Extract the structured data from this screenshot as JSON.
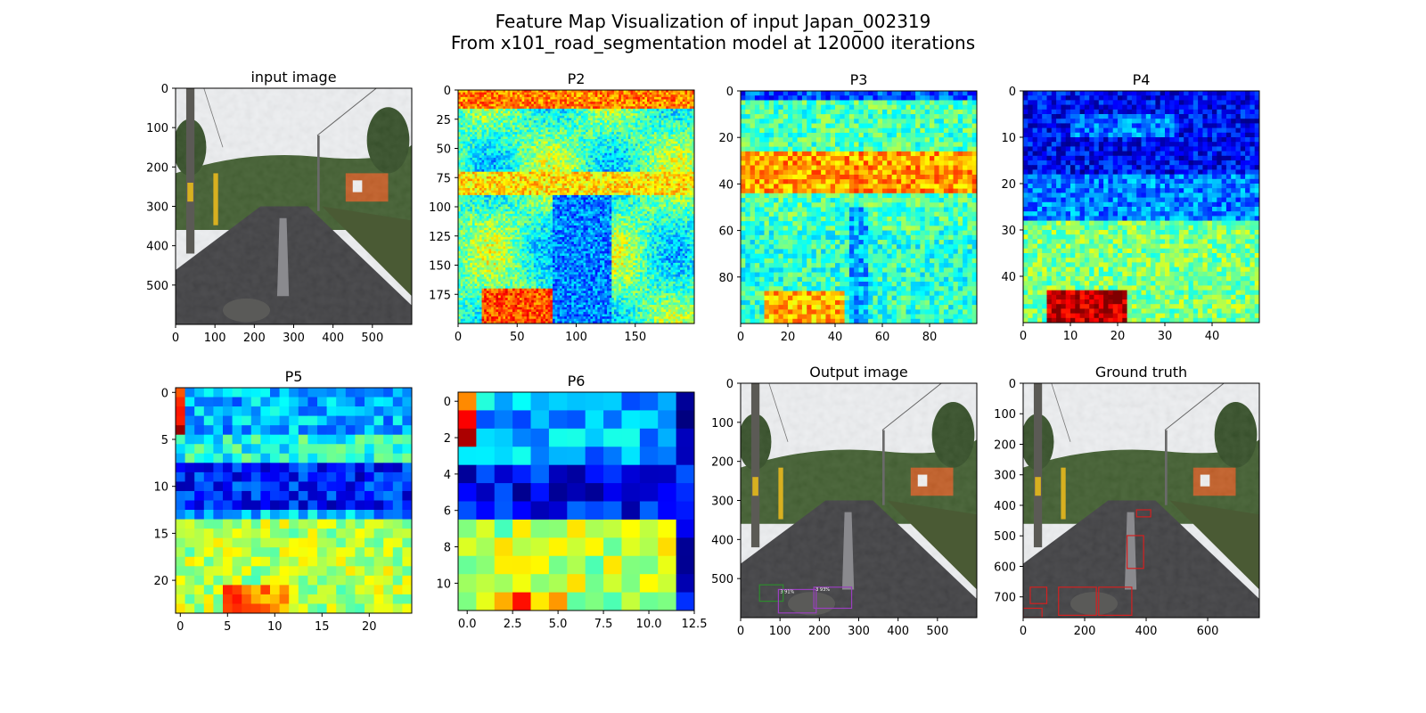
{
  "figure": {
    "title_line1": "Feature Map Visualization of input Japan_002319",
    "title_line2": "From x101_road_segmentation model at 120000 iterations"
  },
  "chart_data": [
    {
      "type": "heatmap",
      "title": "input image",
      "content": "photo",
      "xlim": [
        0,
        600
      ],
      "ylim": [
        600,
        0
      ],
      "xticks": [
        "0",
        "100",
        "200",
        "300",
        "400",
        "500"
      ],
      "xtick_vals": [
        0,
        100,
        200,
        300,
        400,
        500
      ],
      "yticks": [
        "0",
        "100",
        "200",
        "300",
        "400",
        "500"
      ],
      "ytick_vals": [
        0,
        100,
        200,
        300,
        400,
        500
      ]
    },
    {
      "type": "heatmap",
      "title": "P2",
      "content": "heat",
      "xlim": [
        0,
        200
      ],
      "ylim": [
        200,
        0
      ],
      "xticks": [
        "0",
        "50",
        "100",
        "150"
      ],
      "xtick_vals": [
        0,
        50,
        100,
        150
      ],
      "yticks": [
        "0",
        "25",
        "50",
        "75",
        "100",
        "125",
        "150",
        "175"
      ],
      "ytick_vals": [
        0,
        25,
        50,
        75,
        100,
        125,
        150,
        175
      ]
    },
    {
      "type": "heatmap",
      "title": "P3",
      "content": "heat",
      "xlim": [
        0,
        100
      ],
      "ylim": [
        100,
        0
      ],
      "xticks": [
        "0",
        "20",
        "40",
        "60",
        "80"
      ],
      "xtick_vals": [
        0,
        20,
        40,
        60,
        80
      ],
      "yticks": [
        "0",
        "20",
        "40",
        "60",
        "80"
      ],
      "ytick_vals": [
        0,
        20,
        40,
        60,
        80
      ]
    },
    {
      "type": "heatmap",
      "title": "P4",
      "content": "heat",
      "xlim": [
        0,
        50
      ],
      "ylim": [
        50,
        0
      ],
      "xticks": [
        "0",
        "10",
        "20",
        "30",
        "40"
      ],
      "xtick_vals": [
        0,
        10,
        20,
        30,
        40
      ],
      "yticks": [
        "0",
        "10",
        "20",
        "30",
        "40"
      ],
      "ytick_vals": [
        0,
        10,
        20,
        30,
        40
      ]
    },
    {
      "type": "heatmap",
      "title": "P5",
      "content": "heat",
      "xlim": [
        -0.5,
        24.5
      ],
      "ylim": [
        23.5,
        -0.5
      ],
      "xticks": [
        "0",
        "5",
        "10",
        "15",
        "20"
      ],
      "xtick_vals": [
        0,
        5,
        10,
        15,
        20
      ],
      "yticks": [
        "0",
        "5",
        "10",
        "15",
        "20"
      ],
      "ytick_vals": [
        0,
        5,
        10,
        15,
        20
      ]
    },
    {
      "type": "heatmap",
      "title": "P6",
      "content": "heat",
      "xlim": [
        -0.5,
        12.5
      ],
      "ylim": [
        11.5,
        -0.5
      ],
      "xticks": [
        "0.0",
        "2.5",
        "5.0",
        "7.5",
        "10.0",
        "12.5"
      ],
      "xtick_vals": [
        0,
        2.5,
        5,
        7.5,
        10,
        12.5
      ],
      "yticks": [
        "0",
        "2",
        "4",
        "6",
        "8",
        "10"
      ],
      "ytick_vals": [
        0,
        2,
        4,
        6,
        8,
        10
      ]
    },
    {
      "type": "heatmap",
      "title": "Output image",
      "content": "photo",
      "xlim": [
        0,
        600
      ],
      "ylim": [
        600,
        0
      ],
      "xticks": [
        "0",
        "100",
        "200",
        "300",
        "400",
        "500"
      ],
      "xtick_vals": [
        0,
        100,
        200,
        300,
        400,
        500
      ],
      "yticks": [
        "0",
        "100",
        "200",
        "300",
        "400",
        "500"
      ],
      "ytick_vals": [
        0,
        100,
        200,
        300,
        400,
        500
      ],
      "annotations": [
        "3 91%",
        "3 93%"
      ]
    },
    {
      "type": "heatmap",
      "title": "Ground truth",
      "content": "photo",
      "xlim": [
        0,
        768
      ],
      "ylim": [
        768,
        0
      ],
      "xticks": [
        "0",
        "200",
        "400",
        "600"
      ],
      "xtick_vals": [
        0,
        200,
        400,
        600
      ],
      "yticks": [
        "0",
        "100",
        "200",
        "300",
        "400",
        "500",
        "600",
        "700"
      ],
      "ytick_vals": [
        0,
        100,
        200,
        300,
        400,
        500,
        600,
        700
      ]
    }
  ],
  "colors": {
    "colormap": "jet",
    "sky": "#eef0f2",
    "road": "#3b3b3e",
    "vegetation": "#3c5a2a",
    "house": "#c25a20",
    "box_purple": "#9a3fbf",
    "box_red": "#d42020",
    "box_green": "#2e8b2e"
  }
}
